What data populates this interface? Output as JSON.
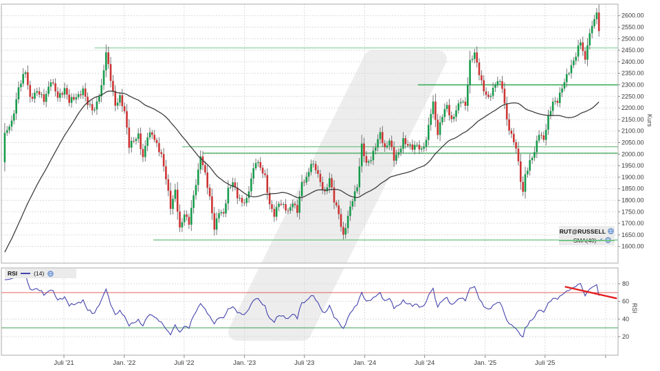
{
  "main_chart": {
    "legend": {
      "symbol": "RUT@RUSSELL",
      "sma_label": "SMA(40)",
      "checkmark": "✔"
    },
    "y_axis": {
      "title": "Kurs",
      "ticks": [
        2600,
        2550,
        2500,
        2450,
        2400,
        2350,
        2300,
        2250,
        2200,
        2150,
        2100,
        2050,
        2000,
        1950,
        1900,
        1850,
        1800,
        1750,
        1700,
        1650,
        1600
      ]
    }
  },
  "rsi_panel": {
    "legend": {
      "title": "RSI",
      "period_label": "(14)"
    },
    "y_axis": {
      "title": "RSI",
      "ticks": [
        80,
        60,
        40,
        20
      ]
    }
  },
  "x_axis": {
    "ticks": [
      {
        "week": 25.7,
        "label": "Juli '21"
      },
      {
        "week": 51.9,
        "label": "Jan. '22"
      },
      {
        "week": 77.9,
        "label": "Juli '22"
      },
      {
        "week": 104.1,
        "label": "Jan. '23"
      },
      {
        "week": 130.1,
        "label": "Juli '23"
      },
      {
        "week": 156.3,
        "label": "Jan. '24"
      },
      {
        "week": 182.3,
        "label": "Juli '24"
      },
      {
        "week": 208.6,
        "label": "Jan. '25"
      },
      {
        "week": 234.6,
        "label": "Juli '25"
      },
      {
        "week": 260.9,
        "label": ""
      }
    ]
  },
  "colors": {
    "up": "#169b4b",
    "down": "#cd3333",
    "wick": "#666666",
    "sma": "#3d3d3d",
    "grid": "#d9d9d9",
    "border": "#a9a9a9",
    "axis_text": "#3a3a3a",
    "watermark": "#ededed",
    "legend_bg": "#ebebeb",
    "icon_blue": "#3c6ec0",
    "rsi_line": "#4343ad",
    "rsi_overbought": "#e0635a",
    "rsi_oversold": "#3c9e50",
    "trendline_red": "#e31f1f",
    "support_green": "#74c487"
  },
  "chart_data": [
    {
      "type": "candlestick",
      "symbol": "RUT@RUSSELL",
      "timeframe": "weekly",
      "n_weeks": 259,
      "ylim": [
        1530,
        2650
      ],
      "overlay_sma": {
        "name": "SMA(40)",
        "period": 40
      },
      "pre_closes": [
        1255,
        1310,
        1335,
        1390,
        1325,
        1355,
        1400,
        1440,
        1435,
        1460,
        1425,
        1450,
        1480,
        1445,
        1500,
        1530,
        1555,
        1540,
        1570,
        1535,
        1560,
        1580,
        1550,
        1515,
        1540,
        1570,
        1600,
        1630,
        1605,
        1640,
        1615,
        1555,
        1620,
        1700,
        1740,
        1790,
        1850,
        1885,
        1920,
        1965
      ],
      "close_anchors": [
        [
          0,
          2085
        ],
        [
          3,
          2135
        ],
        [
          6,
          2290
        ],
        [
          9,
          2355
        ],
        [
          11,
          2245
        ],
        [
          14,
          2270
        ],
        [
          17,
          2235
        ],
        [
          20,
          2320
        ],
        [
          23,
          2245
        ],
        [
          26,
          2285
        ],
        [
          28,
          2225
        ],
        [
          31,
          2250
        ],
        [
          34,
          2275
        ],
        [
          36,
          2215
        ],
        [
          39,
          2195
        ],
        [
          42,
          2285
        ],
        [
          44,
          2445
        ],
        [
          46,
          2330
        ],
        [
          48,
          2205
        ],
        [
          50,
          2245
        ],
        [
          52,
          2190
        ],
        [
          54,
          2035
        ],
        [
          56,
          2055
        ],
        [
          58,
          2085
        ],
        [
          60,
          1985
        ],
        [
          62,
          2075
        ],
        [
          64,
          2090
        ],
        [
          66,
          2045
        ],
        [
          68,
          1990
        ],
        [
          70,
          1895
        ],
        [
          72,
          1775
        ],
        [
          74,
          1840
        ],
        [
          76,
          1670
        ],
        [
          78,
          1745
        ],
        [
          80,
          1705
        ],
        [
          82,
          1815
        ],
        [
          84,
          1925
        ],
        [
          85,
          2000
        ],
        [
          87,
          1915
        ],
        [
          89,
          1805
        ],
        [
          91,
          1680
        ],
        [
          93,
          1755
        ],
        [
          95,
          1735
        ],
        [
          97,
          1845
        ],
        [
          99,
          1885
        ],
        [
          101,
          1815
        ],
        [
          103,
          1785
        ],
        [
          105,
          1805
        ],
        [
          107,
          1895
        ],
        [
          109,
          1965
        ],
        [
          111,
          1945
        ],
        [
          113,
          1905
        ],
        [
          115,
          1775
        ],
        [
          117,
          1735
        ],
        [
          119,
          1795
        ],
        [
          121,
          1775
        ],
        [
          123,
          1745
        ],
        [
          125,
          1795
        ],
        [
          127,
          1755
        ],
        [
          129,
          1870
        ],
        [
          131,
          1895
        ],
        [
          133,
          1965
        ],
        [
          135,
          1935
        ],
        [
          137,
          1875
        ],
        [
          139,
          1835
        ],
        [
          141,
          1895
        ],
        [
          143,
          1795
        ],
        [
          145,
          1745
        ],
        [
          147,
          1645
        ],
        [
          149,
          1725
        ],
        [
          151,
          1805
        ],
        [
          153,
          1865
        ],
        [
          155,
          2035
        ],
        [
          157,
          1955
        ],
        [
          159,
          1985
        ],
        [
          161,
          2035
        ],
        [
          163,
          2085
        ],
        [
          165,
          2025
        ],
        [
          167,
          2065
        ],
        [
          169,
          1975
        ],
        [
          171,
          2005
        ],
        [
          173,
          2065
        ],
        [
          175,
          2035
        ],
        [
          177,
          2025
        ],
        [
          179,
          2045
        ],
        [
          181,
          2015
        ],
        [
          183,
          2055
        ],
        [
          185,
          2185
        ],
        [
          186,
          2225
        ],
        [
          188,
          2085
        ],
        [
          190,
          2165
        ],
        [
          192,
          2215
        ],
        [
          194,
          2145
        ],
        [
          196,
          2185
        ],
        [
          198,
          2235
        ],
        [
          200,
          2215
        ],
        [
          202,
          2395
        ],
        [
          204,
          2435
        ],
        [
          206,
          2355
        ],
        [
          208,
          2275
        ],
        [
          210,
          2235
        ],
        [
          212,
          2285
        ],
        [
          214,
          2325
        ],
        [
          216,
          2285
        ],
        [
          218,
          2145
        ],
        [
          220,
          2085
        ],
        [
          222,
          2025
        ],
        [
          224,
          1885
        ],
        [
          225,
          1835
        ],
        [
          226,
          1915
        ],
        [
          228,
          1965
        ],
        [
          230,
          2005
        ],
        [
          232,
          2095
        ],
        [
          234,
          2065
        ],
        [
          236,
          2155
        ],
        [
          238,
          2225
        ],
        [
          240,
          2235
        ],
        [
          242,
          2285
        ],
        [
          244,
          2335
        ],
        [
          246,
          2385
        ],
        [
          248,
          2430
        ],
        [
          250,
          2485
        ],
        [
          251,
          2445
        ],
        [
          252,
          2405
        ],
        [
          253,
          2485
        ],
        [
          255,
          2555
        ],
        [
          256,
          2585
        ],
        [
          257,
          2600
        ],
        [
          258,
          2540
        ]
      ],
      "levels": [
        {
          "value": 2460,
          "from_week": 39.0,
          "color": "#8fd3a0",
          "width": 1.3
        },
        {
          "value": 2300,
          "from_week": 179.4,
          "color": "#2ca84e",
          "width": 1.4
        },
        {
          "value": 2032,
          "from_week": 77.0,
          "color": "#79c489",
          "width": 1.3
        },
        {
          "value": 2004,
          "from_week": 86.0,
          "color": "#49ad60",
          "width": 1.3
        },
        {
          "value": 1628,
          "from_week": 64.5,
          "color": "#74c487",
          "width": 1.3
        }
      ],
      "synthesis": {
        "wiggle1": 9,
        "freq1": 2.399,
        "phase1": 1.0,
        "wiggle2": 5,
        "freq2": 0.937,
        "wick_base": 5,
        "wick_amp": 11
      }
    },
    {
      "type": "line",
      "name": "RSI",
      "period": 14,
      "source": "closes",
      "ylim": [
        0,
        100
      ],
      "ticks": [
        80,
        60,
        40,
        20
      ],
      "levels": [
        {
          "value": 70,
          "color": "#e0635a",
          "width": 1
        },
        {
          "value": 30,
          "color": "#3c9e50",
          "width": 1
        }
      ],
      "trendline": {
        "from_week": 243.5,
        "from_value": 76.5,
        "to_week": 265.5,
        "to_value": 63.5,
        "color": "#e31f1f",
        "width": 2.4
      },
      "line_color": "#4343ad"
    }
  ]
}
